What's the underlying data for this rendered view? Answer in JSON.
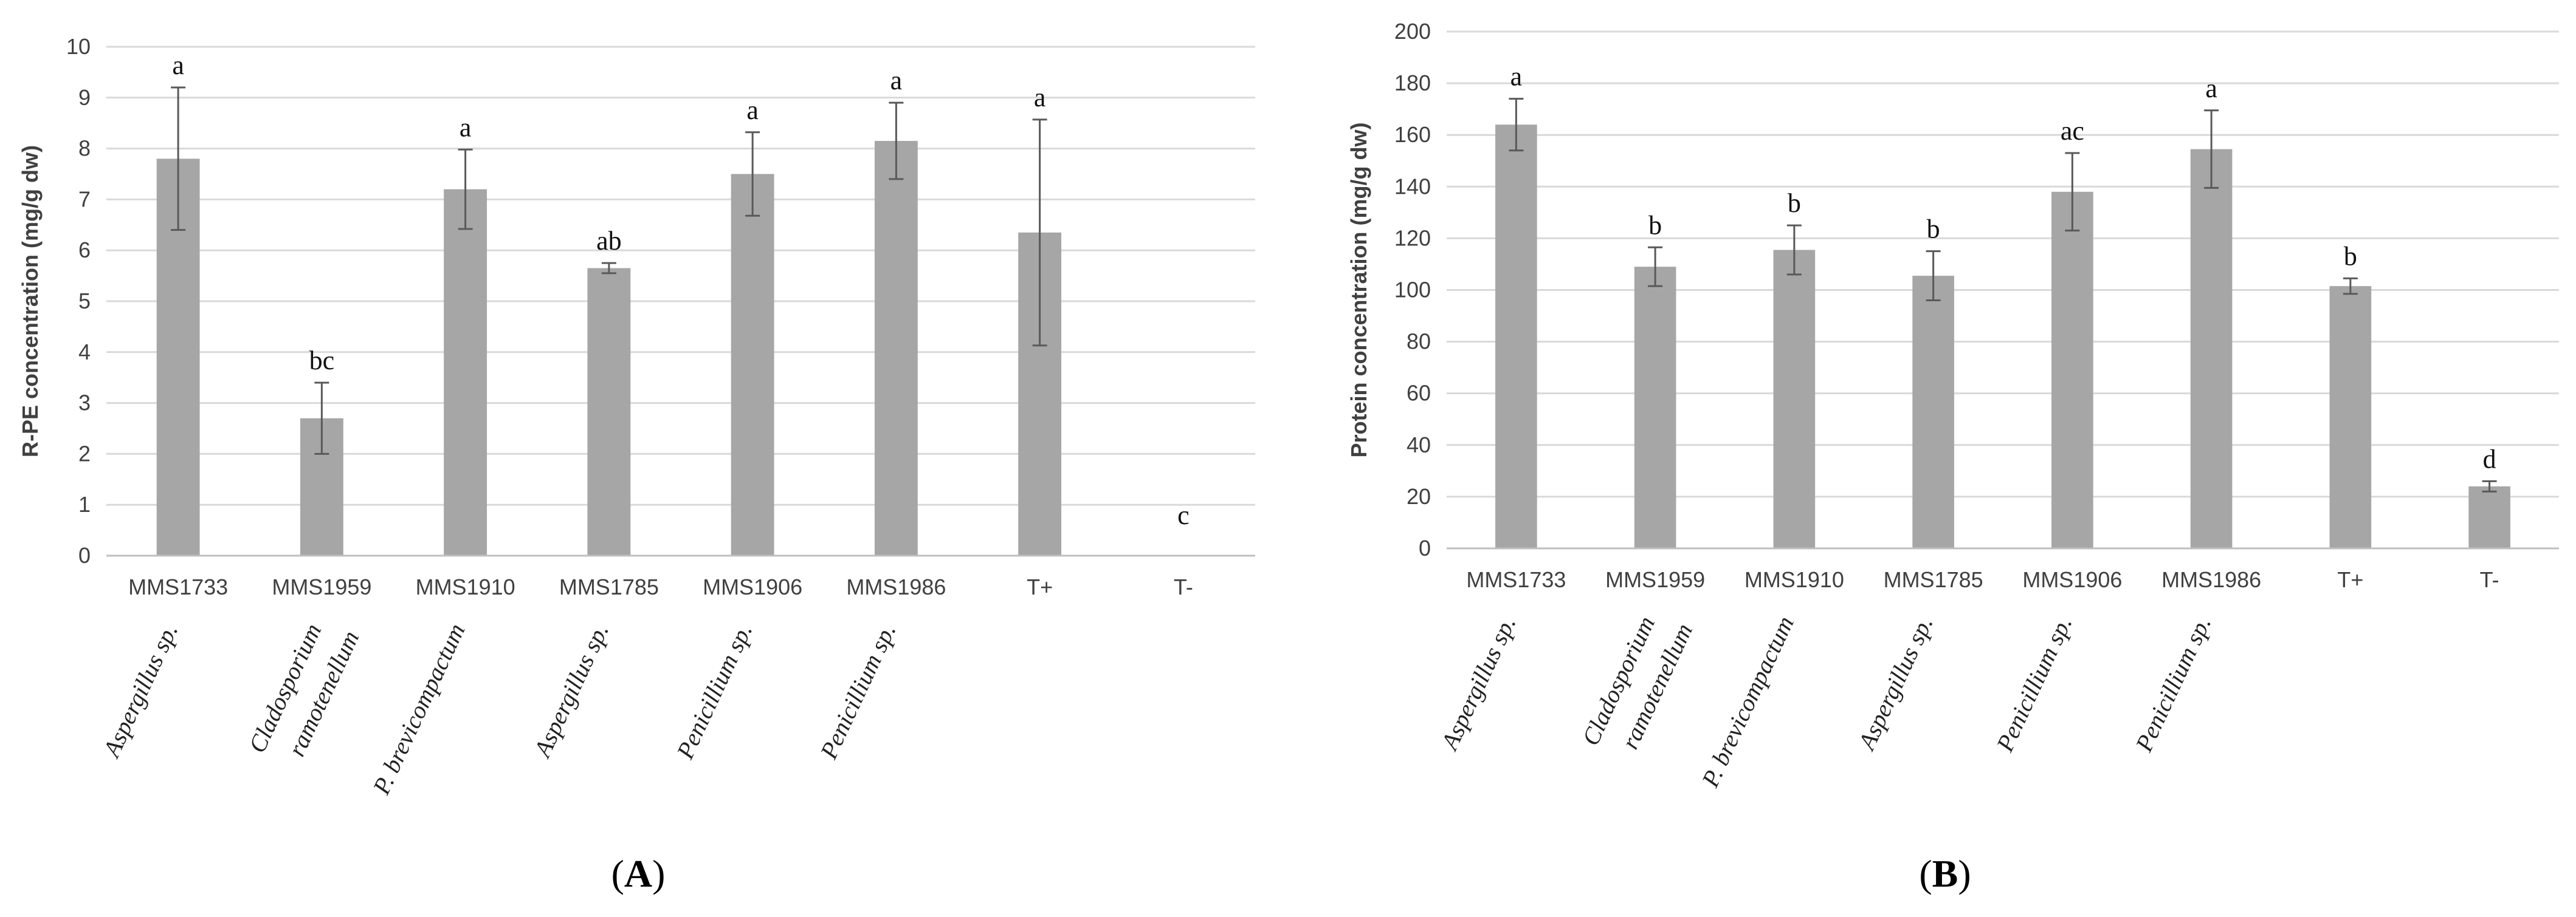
{
  "chart_data": [
    {
      "type": "bar",
      "panel_label": "A",
      "ylabel": "R-PE concentration (mg/g dw)",
      "ylim": [
        0,
        10
      ],
      "yticks": [
        0,
        1,
        2,
        3,
        4,
        5,
        6,
        7,
        8,
        9,
        10
      ],
      "grid": true,
      "bar_color": "#a6a6a6",
      "categories": [
        "MMS1733",
        "MMS1959",
        "MMS1910",
        "MMS1785",
        "MMS1906",
        "MMS1986",
        "T+",
        "T-"
      ],
      "species": [
        [
          "Aspergillus sp."
        ],
        [
          "Cladosporium",
          "ramotenellum"
        ],
        [
          "P. brevicompactum"
        ],
        [
          "Aspergillus sp."
        ],
        [
          "Penicillium sp."
        ],
        [
          "Penicillium sp."
        ],
        [],
        []
      ],
      "values": [
        7.8,
        2.7,
        7.2,
        5.65,
        7.5,
        8.15,
        6.35,
        0
      ],
      "errors": [
        1.4,
        0.7,
        0.78,
        0.1,
        0.82,
        0.75,
        2.22,
        0
      ],
      "letters": [
        "a",
        "bc",
        "a",
        "ab",
        "a",
        "a",
        "a",
        "c"
      ]
    },
    {
      "type": "bar",
      "panel_label": "B",
      "ylabel": "Protein concentration (mg/g dw)",
      "ylim": [
        0,
        200
      ],
      "yticks": [
        0,
        20,
        40,
        60,
        80,
        100,
        120,
        140,
        160,
        180,
        200
      ],
      "grid": true,
      "bar_color": "#a6a6a6",
      "categories": [
        "MMS1733",
        "MMS1959",
        "MMS1910",
        "MMS1785",
        "MMS1906",
        "MMS1986",
        "T+",
        "T-"
      ],
      "species": [
        [
          "Aspergillus sp."
        ],
        [
          "Cladosporium",
          "ramotenellum"
        ],
        [
          "P. brevicompactum"
        ],
        [
          "Aspergillus sp."
        ],
        [
          "Penicillium sp."
        ],
        [
          "Penicillium sp."
        ],
        [],
        []
      ],
      "values": [
        164,
        109,
        115.5,
        105.5,
        138,
        154.5,
        101.5,
        24
      ],
      "errors": [
        10,
        7.5,
        9.5,
        9.5,
        15,
        15,
        3,
        2
      ],
      "letters": [
        "a",
        "b",
        "b",
        "b",
        "ac",
        "a",
        "b",
        "d"
      ]
    }
  ]
}
